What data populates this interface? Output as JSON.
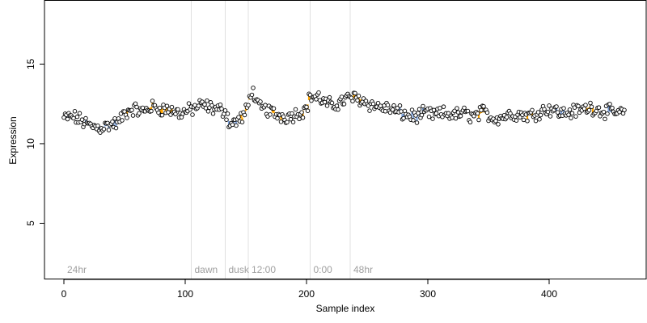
{
  "chart_data": {
    "type": "scatter",
    "title": "",
    "xlabel": "Sample index",
    "ylabel": "Expression",
    "xlim": [
      -16,
      480
    ],
    "ylim": [
      1.5,
      19
    ],
    "x_ticks": [
      0,
      100,
      200,
      300,
      400
    ],
    "y_ticks": [
      5,
      10,
      15
    ],
    "grid": false,
    "legend": "none",
    "vertical_lines": [
      {
        "x": 0,
        "label": "24hr"
      },
      {
        "x": 105,
        "label": "dawn"
      },
      {
        "x": 133,
        "label": "dusk"
      },
      {
        "x": 152,
        "label": "12:00"
      },
      {
        "x": 203,
        "label": "0:00"
      },
      {
        "x": 236,
        "label": "48hr"
      }
    ],
    "colors": {
      "point_edge": "#000000",
      "point_fill": "#ffffff",
      "up_segment": "#ffa500",
      "down_segment": "#7da2db",
      "neutral_segment": "#a8a8a8",
      "vline": "#e0e0e0",
      "vline_label": "#a0a0a0"
    },
    "segment_anchors": [
      [
        0,
        11.6
      ],
      [
        8,
        11.7
      ],
      [
        15,
        11.4
      ],
      [
        22,
        11.1
      ],
      [
        30,
        11.0
      ],
      [
        38,
        11.2
      ],
      [
        45,
        11.3
      ],
      [
        50,
        11.9
      ],
      [
        56,
        12.2
      ],
      [
        65,
        12.0
      ],
      [
        72,
        12.3
      ],
      [
        80,
        12.2
      ],
      [
        88,
        12.1
      ],
      [
        96,
        11.9
      ],
      [
        104,
        12.1
      ],
      [
        112,
        12.4
      ],
      [
        120,
        12.3
      ],
      [
        128,
        12.1
      ],
      [
        133,
        12.1
      ],
      [
        137,
        11.2
      ],
      [
        142,
        11.4
      ],
      [
        148,
        11.7
      ],
      [
        152,
        12.4
      ],
      [
        155,
        13.5
      ],
      [
        160,
        12.3
      ],
      [
        168,
        12.1
      ],
      [
        176,
        11.8
      ],
      [
        184,
        11.7
      ],
      [
        192,
        11.9
      ],
      [
        200,
        12.2
      ],
      [
        203,
        13.0
      ],
      [
        210,
        12.9
      ],
      [
        216,
        12.5
      ],
      [
        222,
        12.4
      ],
      [
        230,
        12.7
      ],
      [
        236,
        12.9
      ],
      [
        244,
        12.8
      ],
      [
        252,
        12.5
      ],
      [
        260,
        12.3
      ],
      [
        268,
        12.2
      ],
      [
        275,
        12.0
      ],
      [
        282,
        11.8
      ],
      [
        290,
        11.7
      ],
      [
        298,
        11.9
      ],
      [
        306,
        11.8
      ],
      [
        314,
        11.9
      ],
      [
        322,
        11.8
      ],
      [
        330,
        11.9
      ],
      [
        338,
        11.7
      ],
      [
        346,
        12.0
      ],
      [
        354,
        11.6
      ],
      [
        362,
        11.7
      ],
      [
        370,
        11.9
      ],
      [
        378,
        11.8
      ],
      [
        386,
        11.8
      ],
      [
        394,
        12.1
      ],
      [
        402,
        12.2
      ],
      [
        410,
        11.9
      ],
      [
        418,
        12.0
      ],
      [
        426,
        12.1
      ],
      [
        434,
        12.3
      ],
      [
        442,
        12.1
      ],
      [
        450,
        12.0
      ],
      [
        458,
        11.9
      ],
      [
        462,
        12.0
      ]
    ],
    "spread": 0.35,
    "n_points": 463,
    "upregulated_ranges": [
      [
        50,
        56
      ],
      [
        68,
        90
      ],
      [
        146,
        154
      ],
      [
        172,
        180
      ],
      [
        196,
        204
      ],
      [
        236,
        246
      ],
      [
        342,
        348
      ],
      [
        380,
        386
      ],
      [
        428,
        436
      ]
    ],
    "downregulated_ranges": [
      [
        0,
        4
      ],
      [
        18,
        46
      ],
      [
        136,
        144
      ],
      [
        276,
        296
      ],
      [
        404,
        414
      ],
      [
        448,
        452
      ]
    ],
    "neutral_ranges": [
      [
        212,
        232
      ]
    ]
  }
}
